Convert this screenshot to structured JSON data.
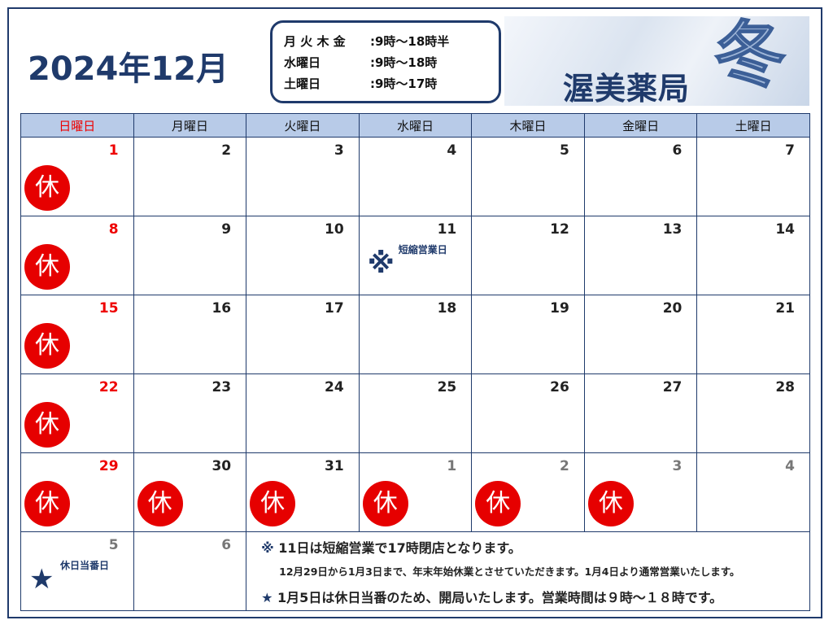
{
  "title": "2024年12月",
  "hours": [
    {
      "days": "月 火 木 金",
      "time": ":9時～18時半"
    },
    {
      "days": "水曜日",
      "time": ":9時～18時"
    },
    {
      "days": "土曜日",
      "time": ":9時～17時"
    }
  ],
  "pharmacy_name": "渥美薬局",
  "season": "冬",
  "weekdays": [
    "日曜日",
    "月曜日",
    "火曜日",
    "水曜日",
    "木曜日",
    "金曜日",
    "土曜日"
  ],
  "holiday_label": "休",
  "colors": {
    "navy": "#1f3a6b",
    "holiday_red": "#e60000",
    "header_bg": "#b8cbe8"
  },
  "weeks": [
    [
      {
        "d": "1",
        "h": true
      },
      {
        "d": "2"
      },
      {
        "d": "3"
      },
      {
        "d": "4"
      },
      {
        "d": "5"
      },
      {
        "d": "6"
      },
      {
        "d": "7"
      }
    ],
    [
      {
        "d": "8",
        "h": true
      },
      {
        "d": "9"
      },
      {
        "d": "10"
      },
      {
        "d": "11",
        "mark": "※",
        "note": "短縮営業日"
      },
      {
        "d": "12"
      },
      {
        "d": "13"
      },
      {
        "d": "14"
      }
    ],
    [
      {
        "d": "15",
        "h": true
      },
      {
        "d": "16"
      },
      {
        "d": "17"
      },
      {
        "d": "18"
      },
      {
        "d": "19"
      },
      {
        "d": "20"
      },
      {
        "d": "21"
      }
    ],
    [
      {
        "d": "22",
        "h": true
      },
      {
        "d": "23"
      },
      {
        "d": "24"
      },
      {
        "d": "25"
      },
      {
        "d": "26"
      },
      {
        "d": "27"
      },
      {
        "d": "28"
      }
    ],
    [
      {
        "d": "29",
        "h": true
      },
      {
        "d": "30",
        "h": true
      },
      {
        "d": "31",
        "h": true
      },
      {
        "d": "1",
        "h": true,
        "o": true
      },
      {
        "d": "2",
        "h": true,
        "o": true
      },
      {
        "d": "3",
        "h": true,
        "o": true
      },
      {
        "d": "4",
        "o": true
      }
    ]
  ],
  "last_week": [
    {
      "d": "5",
      "o": true,
      "mark": "★",
      "note": "休日当番日"
    },
    {
      "d": "6",
      "o": true
    }
  ],
  "footer": {
    "mark1": "※",
    "line1": "11日は短縮営業で17時閉店となります。",
    "line2": "12月29日から1月3日まで、年末年始休業とさせていただきます。1月4日より通常営業いたします。",
    "mark3": "★",
    "line3": "1月5日は休日当番のため、開局いたします。営業時間は９時～１８時です。"
  }
}
